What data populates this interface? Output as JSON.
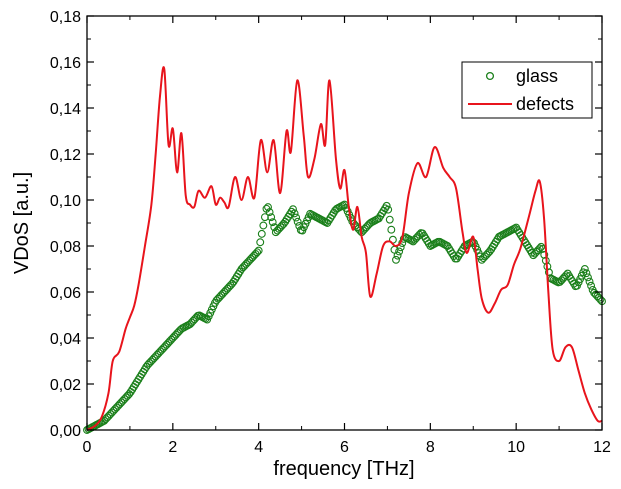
{
  "chart_data": {
    "type": "line",
    "title": "",
    "xlabel": "frequency [THz]",
    "ylabel": "VDoS [a.u.]",
    "xlim": [
      0,
      12
    ],
    "ylim": [
      0,
      0.18
    ],
    "x_ticks": [
      "0",
      "2",
      "4",
      "6",
      "8",
      "10",
      "12"
    ],
    "y_ticks": [
      "0,00",
      "0,02",
      "0,04",
      "0,06",
      "0,08",
      "0,10",
      "0,12",
      "0,14",
      "0,16",
      "0,18"
    ],
    "legend_position": "top-right",
    "grid": false,
    "series": [
      {
        "name": "glass",
        "style": "open-circle markers",
        "color": "#1a7f1a",
        "x": [
          0.0,
          0.2,
          0.4,
          0.6,
          0.8,
          1.0,
          1.2,
          1.4,
          1.6,
          1.8,
          2.0,
          2.2,
          2.4,
          2.6,
          2.8,
          3.0,
          3.2,
          3.4,
          3.6,
          3.8,
          4.0,
          4.2,
          4.4,
          4.6,
          4.8,
          5.0,
          5.2,
          5.4,
          5.6,
          5.8,
          6.0,
          6.2,
          6.4,
          6.6,
          6.8,
          7.0,
          7.2,
          7.4,
          7.6,
          7.8,
          8.0,
          8.2,
          8.4,
          8.6,
          8.8,
          9.0,
          9.2,
          9.4,
          9.6,
          9.8,
          10.0,
          10.2,
          10.4,
          10.6,
          10.8,
          11.0,
          11.2,
          11.4,
          11.6,
          11.8,
          12.0
        ],
        "values": [
          0.0,
          0.002,
          0.004,
          0.008,
          0.012,
          0.016,
          0.022,
          0.028,
          0.032,
          0.036,
          0.04,
          0.044,
          0.046,
          0.05,
          0.048,
          0.056,
          0.06,
          0.064,
          0.07,
          0.074,
          0.078,
          0.098,
          0.086,
          0.09,
          0.096,
          0.086,
          0.094,
          0.092,
          0.09,
          0.096,
          0.098,
          0.09,
          0.086,
          0.09,
          0.092,
          0.098,
          0.074,
          0.084,
          0.082,
          0.086,
          0.08,
          0.082,
          0.08,
          0.074,
          0.08,
          0.082,
          0.074,
          0.078,
          0.084,
          0.086,
          0.088,
          0.082,
          0.076,
          0.08,
          0.066,
          0.064,
          0.068,
          0.062,
          0.07,
          0.06,
          0.056
        ]
      },
      {
        "name": "defects",
        "style": "line",
        "color": "#e8141c",
        "x": [
          0.0,
          0.2,
          0.35,
          0.5,
          0.6,
          0.75,
          0.9,
          1.0,
          1.1,
          1.2,
          1.35,
          1.5,
          1.6,
          1.7,
          1.8,
          1.9,
          2.0,
          2.1,
          2.2,
          2.3,
          2.4,
          2.5,
          2.6,
          2.75,
          2.9,
          3.0,
          3.1,
          3.2,
          3.3,
          3.45,
          3.6,
          3.75,
          3.9,
          4.05,
          4.2,
          4.35,
          4.5,
          4.65,
          4.75,
          4.9,
          5.05,
          5.15,
          5.3,
          5.45,
          5.55,
          5.65,
          5.8,
          5.9,
          6.0,
          6.1,
          6.2,
          6.3,
          6.4,
          6.5,
          6.6,
          6.75,
          6.9,
          7.05,
          7.2,
          7.35,
          7.5,
          7.7,
          7.9,
          8.1,
          8.3,
          8.45,
          8.6,
          8.75,
          8.85,
          9.0,
          9.1,
          9.2,
          9.35,
          9.5,
          9.65,
          9.8,
          9.95,
          10.1,
          10.3,
          10.45,
          10.55,
          10.65,
          10.75,
          10.85,
          11.0,
          11.15,
          11.3,
          11.45,
          11.6,
          11.75,
          11.9,
          12.0
        ],
        "values": [
          0.0,
          0.002,
          0.006,
          0.016,
          0.03,
          0.034,
          0.044,
          0.049,
          0.054,
          0.063,
          0.08,
          0.098,
          0.12,
          0.145,
          0.157,
          0.124,
          0.131,
          0.112,
          0.129,
          0.102,
          0.098,
          0.097,
          0.104,
          0.101,
          0.106,
          0.098,
          0.101,
          0.099,
          0.097,
          0.11,
          0.1,
          0.11,
          0.101,
          0.126,
          0.112,
          0.126,
          0.103,
          0.13,
          0.121,
          0.152,
          0.128,
          0.11,
          0.118,
          0.133,
          0.124,
          0.152,
          0.118,
          0.105,
          0.113,
          0.097,
          0.087,
          0.097,
          0.084,
          0.077,
          0.058,
          0.068,
          0.08,
          0.082,
          0.08,
          0.084,
          0.103,
          0.116,
          0.11,
          0.123,
          0.114,
          0.11,
          0.105,
          0.086,
          0.077,
          0.084,
          0.07,
          0.057,
          0.051,
          0.055,
          0.061,
          0.063,
          0.072,
          0.079,
          0.093,
          0.104,
          0.108,
          0.092,
          0.06,
          0.035,
          0.03,
          0.036,
          0.036,
          0.026,
          0.016,
          0.009,
          0.004,
          0.004
        ]
      }
    ]
  }
}
